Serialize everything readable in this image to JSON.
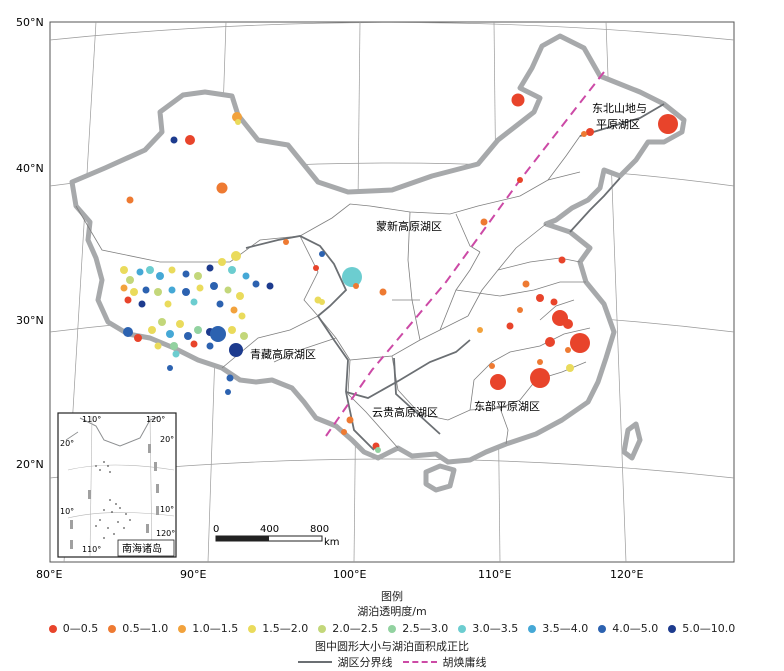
{
  "lat_labels": [
    "50°N",
    "40°N",
    "30°N",
    "20°N"
  ],
  "lon_labels": [
    "80°E",
    "90°E",
    "100°E",
    "110°E",
    "120°E"
  ],
  "regions": {
    "northeast": "东北山地与平原湖区",
    "mengxin": "蒙新高原湖区",
    "qingzang": "青藏高原湖区",
    "yungui": "云贵高原湖区",
    "east": "东部平原湖区"
  },
  "scale_bar": {
    "ticks": [
      "0",
      "400",
      "800"
    ],
    "unit": "km"
  },
  "inset": {
    "title": "南海诸岛",
    "lon_labels": [
      "110°",
      "120°",
      "120°",
      "110°"
    ],
    "lat_labels": [
      "20°",
      "20°",
      "10°",
      "10°"
    ]
  },
  "legend": {
    "title": "图例",
    "subtitle": "湖泊透明度/m",
    "classes": [
      {
        "label": "0—0.5",
        "color": "#e8442b"
      },
      {
        "label": "0.5—1.0",
        "color": "#ee7a32"
      },
      {
        "label": "1.0—1.5",
        "color": "#f2a23c"
      },
      {
        "label": "1.5—2.0",
        "color": "#eadb5c"
      },
      {
        "label": "2.0—2.5",
        "color": "#c3d77a"
      },
      {
        "label": "2.5—3.0",
        "color": "#92d2a0"
      },
      {
        "label": "3.0—3.5",
        "color": "#6ccdd0"
      },
      {
        "label": "3.5—4.0",
        "color": "#45a8d6"
      },
      {
        "label": "4.0—5.0",
        "color": "#2c62b0"
      },
      {
        "label": "5.0—10.0",
        "color": "#1d3b8e"
      }
    ],
    "size_note": "图中圆形大小与湖泊面积成正比",
    "boundary_label": "湖区分界线",
    "huline_label": "胡焕庸线",
    "boundary_color": "#6b6f73",
    "huline_color": "#cc4aa6"
  }
}
